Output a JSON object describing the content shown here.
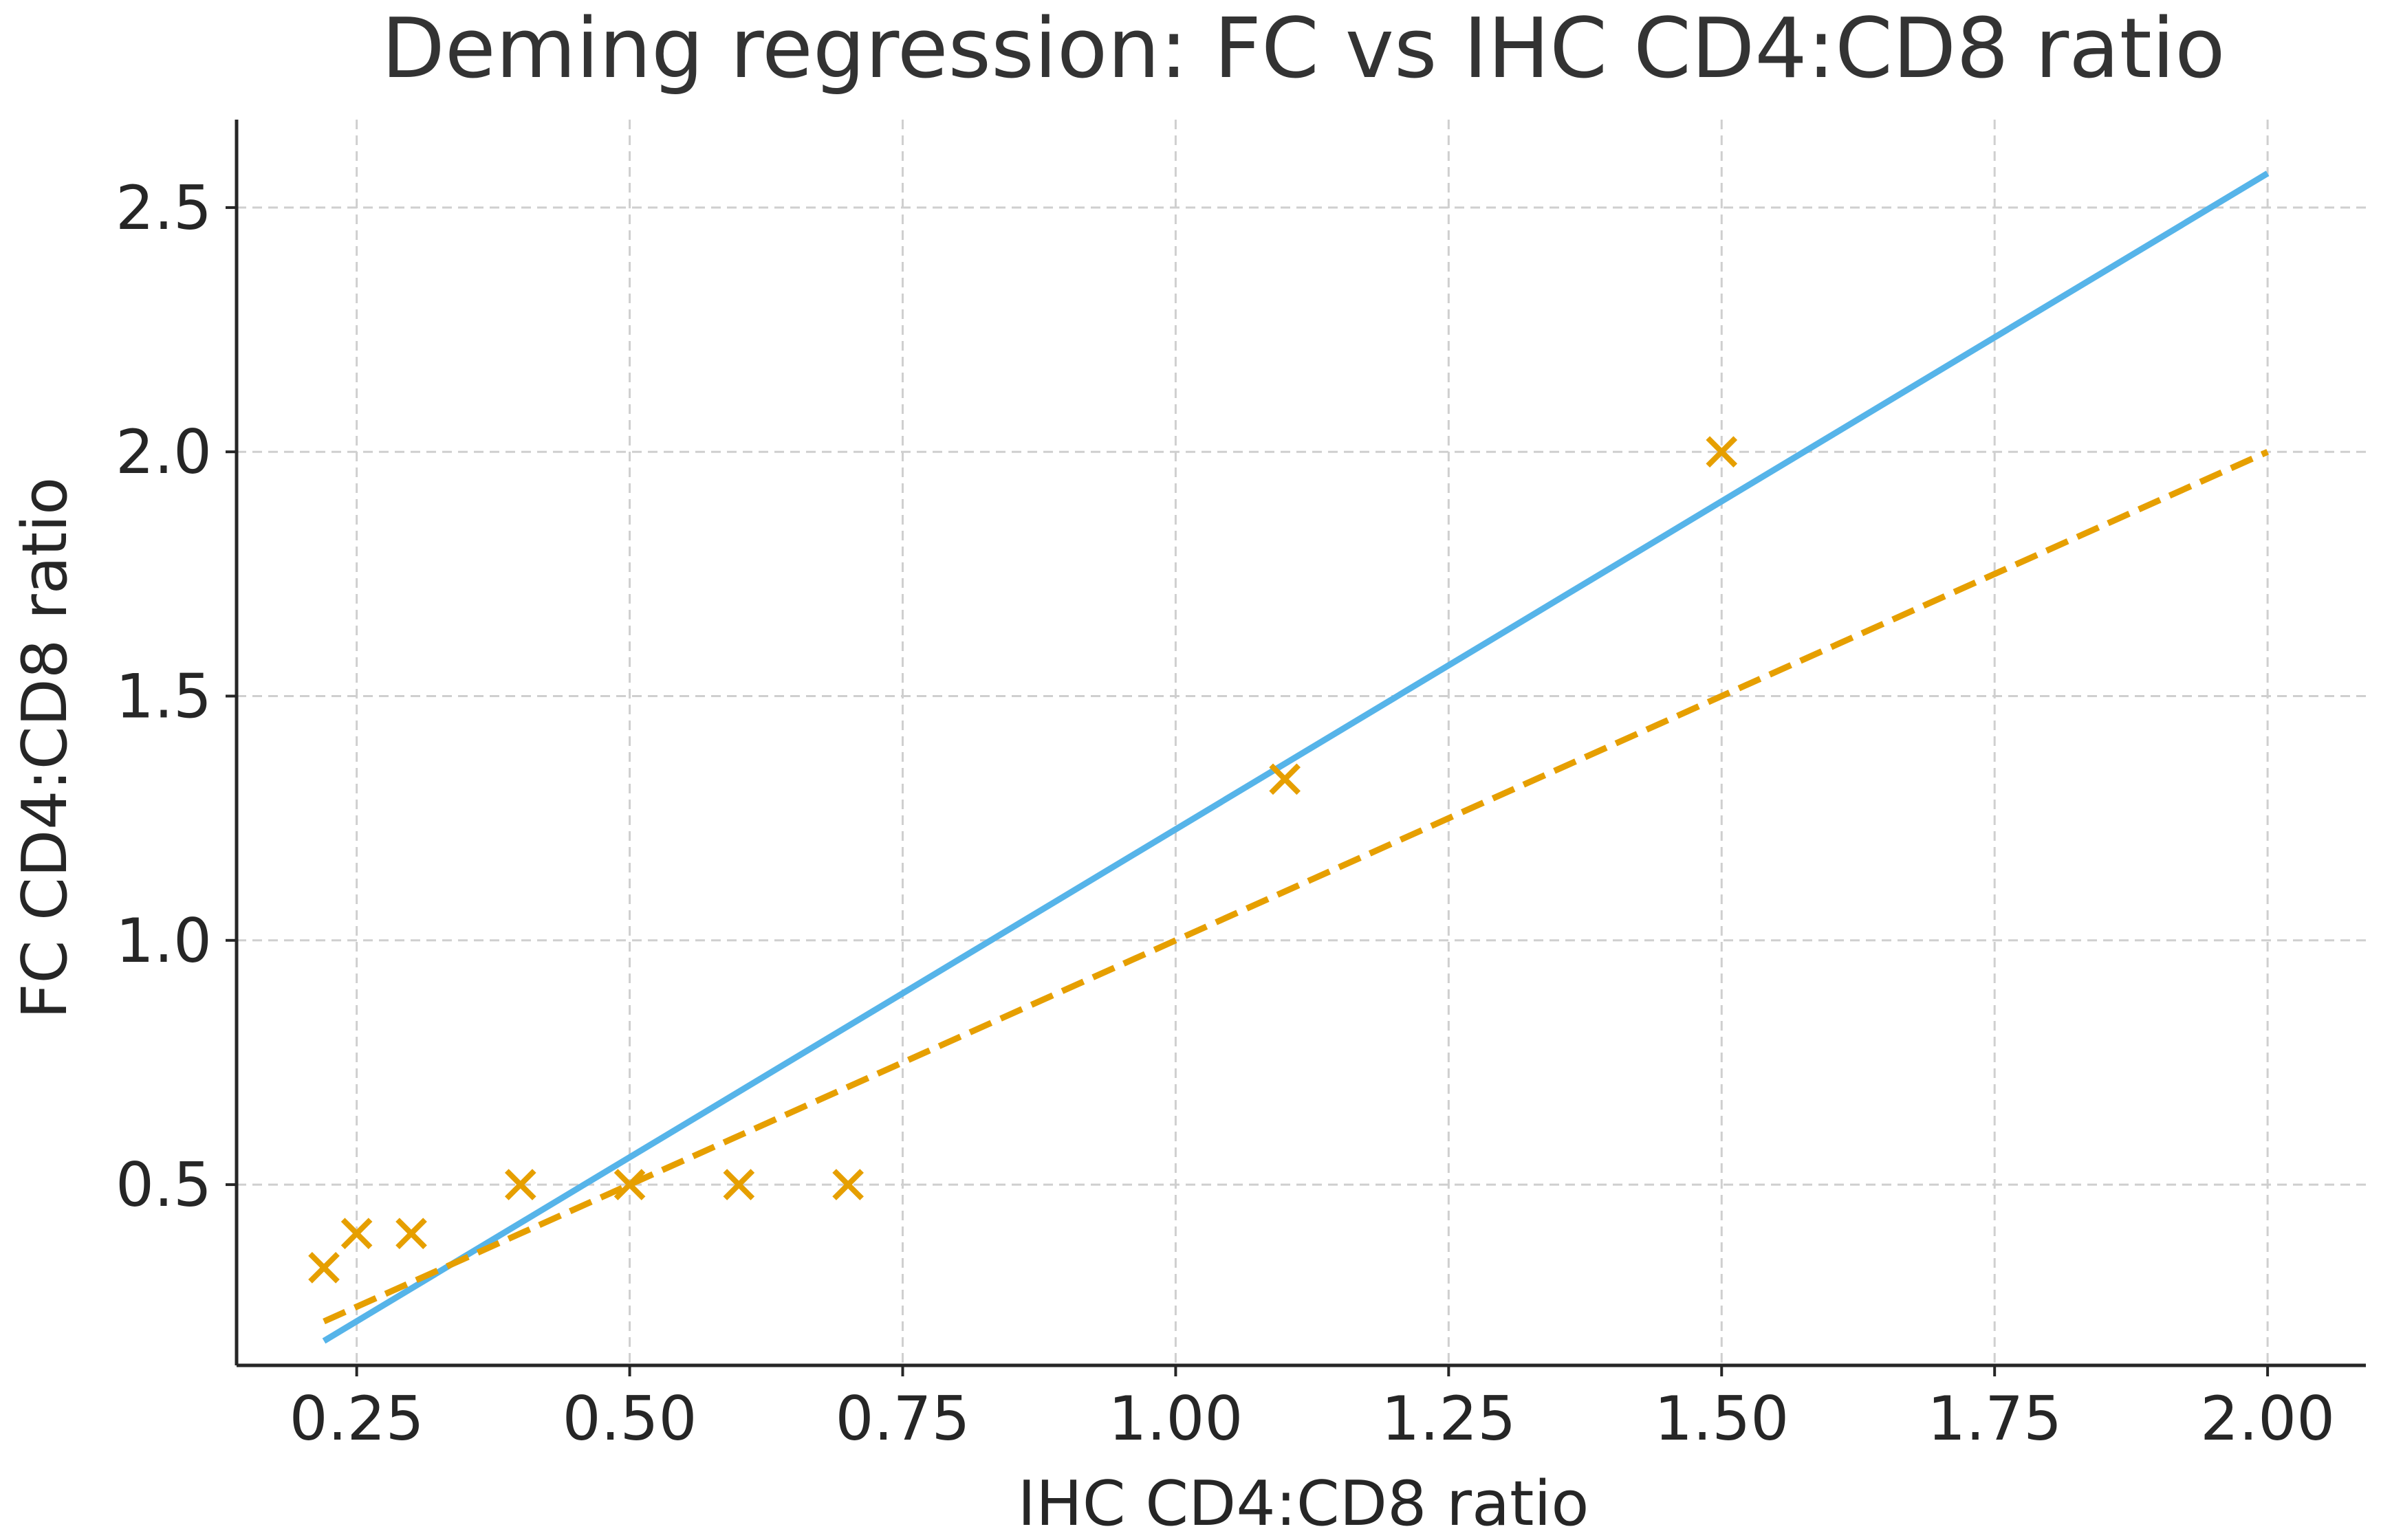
{
  "chart_data": {
    "type": "scatter",
    "title": "Deming regression: FC vs IHC CD4:CD8 ratio",
    "xlabel": "IHC CD4:CD8 ratio",
    "ylabel": "FC CD4:CD8 ratio",
    "xlim": [
      0.14,
      2.09
    ],
    "ylim": [
      0.13,
      2.68
    ],
    "xticks": [
      0.25,
      0.5,
      0.75,
      1.0,
      1.25,
      1.5,
      1.75,
      2.0
    ],
    "xtick_labels": [
      "0.25",
      "0.50",
      "0.75",
      "1.00",
      "1.25",
      "1.50",
      "1.75",
      "2.00"
    ],
    "yticks": [
      0.5,
      1.0,
      1.5,
      2.0,
      2.5
    ],
    "ytick_labels": [
      "0.5",
      "1.0",
      "1.5",
      "2.0",
      "2.5"
    ],
    "grid": true,
    "legend": false,
    "points": {
      "marker": "x",
      "color": "#E69F00",
      "x": [
        0.22,
        0.25,
        0.3,
        0.4,
        0.5,
        0.6,
        0.7,
        1.1,
        1.5
      ],
      "y": [
        0.33,
        0.4,
        0.4,
        0.5,
        0.5,
        0.5,
        0.5,
        1.33,
        2.0
      ]
    },
    "lines": [
      {
        "style": "solid",
        "color": "#56B4E9",
        "x": [
          0.22,
          2.0
        ],
        "y": [
          0.18,
          2.57
        ]
      },
      {
        "style": "dashed",
        "color": "#E69F00",
        "x": [
          0.22,
          2.0
        ],
        "y": [
          0.22,
          2.0
        ]
      }
    ]
  }
}
